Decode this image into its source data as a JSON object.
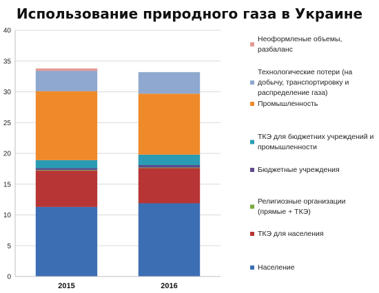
{
  "chart_data": {
    "type": "bar",
    "stacked": true,
    "title": "Использование природного газа в Украине",
    "categories": [
      "2015",
      "2016"
    ],
    "ylim": [
      0,
      40
    ],
    "yticks": [
      0,
      5,
      10,
      15,
      20,
      25,
      30,
      35,
      40
    ],
    "grid": true,
    "legend_position": "right",
    "series": [
      {
        "name": "Население",
        "color": "#3C6EB4",
        "values": [
          11.3,
          11.9
        ]
      },
      {
        "name": "ТКЭ для населения",
        "color": "#B73535",
        "values": [
          5.9,
          5.7
        ]
      },
      {
        "name": "Религиозные организации (прямые + ТКЭ)",
        "color": "#7EA93F",
        "values": [
          0.1,
          0.1
        ]
      },
      {
        "name": "Бюджетные учреждения",
        "color": "#5E4A8C",
        "values": [
          0.3,
          0.4
        ]
      },
      {
        "name": "ТКЭ для бюджетних учреждений и промышленности",
        "color": "#2A9BB3",
        "values": [
          1.3,
          1.7
        ]
      },
      {
        "name": "Промышленность",
        "color": "#EF8A2B",
        "values": [
          11.2,
          9.9
        ]
      },
      {
        "name": "Технологические потери (на добычу, транспортировку и распределение газа)",
        "color": "#8FA8CF",
        "values": [
          3.3,
          3.5
        ]
      },
      {
        "name": "Неоформленые объемы, разбаланс",
        "color": "#E39A96",
        "values": [
          0.4,
          0.0
        ]
      }
    ],
    "legend_lines": [
      [
        "Неоформленые объемы,",
        "разбаланс"
      ],
      [
        "Технологические потери (на",
        "добычу, транспортировку и",
        "распределение газа)"
      ],
      [
        "Промышленность"
      ],
      [
        "ТКЭ для бюджетних учреждений и",
        "промышленности"
      ],
      [
        "Бюджетные учреждения"
      ],
      [
        "Религиозные организации",
        "(прямые + ТКЭ)"
      ],
      [
        "ТКЭ для населения"
      ],
      [
        "Население"
      ]
    ]
  }
}
